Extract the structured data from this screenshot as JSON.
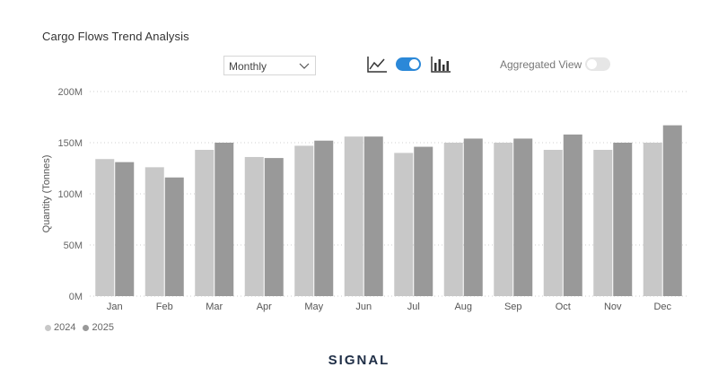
{
  "page": {
    "title": "Cargo Flows Trend Analysis"
  },
  "controls": {
    "period_dropdown": {
      "value": "Monthly"
    },
    "icons": [
      "line-chart-icon",
      "toggle-switch",
      "bar-chart-icon"
    ],
    "aggregated_label": "Aggregated View",
    "aggregated_on": false,
    "chart_toggle_on": true
  },
  "brand": {
    "logo_text": "SIGNAL"
  },
  "colors": {
    "series_2024": "#c8c8c8",
    "series_2025": "#999999",
    "toggle_on": "#2b88d8",
    "toggle_off": "#e6e6e6",
    "grid": "#cfcfcf"
  },
  "chart_data": {
    "type": "bar",
    "categories": [
      "Jan",
      "Feb",
      "Mar",
      "Apr",
      "May",
      "Jun",
      "Jul",
      "Aug",
      "Sep",
      "Oct",
      "Nov",
      "Dec"
    ],
    "series": [
      {
        "name": "2024",
        "values": [
          134,
          126,
          143,
          136,
          147,
          156,
          140,
          150,
          150,
          143,
          143,
          150
        ]
      },
      {
        "name": "2025",
        "values": [
          131,
          116,
          150,
          135,
          152,
          156,
          146,
          154,
          154,
          158,
          150,
          167
        ]
      }
    ],
    "ylabel": "Quantity (Tonnes)",
    "xlabel": "",
    "yticks": [
      "0M",
      "50M",
      "100M",
      "150M",
      "200M"
    ],
    "ylim": [
      0,
      200
    ],
    "grid": true,
    "legend": "bottom-left"
  }
}
